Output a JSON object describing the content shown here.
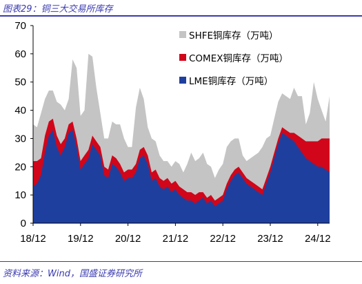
{
  "figure": {
    "title": "图表29：铜三大交易所库存",
    "source": "资料来源：Wind，国盛证券研究所"
  },
  "chart_data": {
    "type": "area",
    "stacked": true,
    "title": "",
    "xlabel": "",
    "ylabel": "",
    "ylim": [
      0,
      70
    ],
    "yticks": [
      0,
      10,
      20,
      30,
      40,
      50,
      60,
      70
    ],
    "xlim": [
      "2018-12",
      "2025-03"
    ],
    "xtick_labels": [
      "18/12",
      "19/12",
      "20/12",
      "21/12",
      "22/12",
      "23/12",
      "24/12"
    ],
    "grid": false,
    "legend_position": "top-right",
    "x": [
      "2018-12",
      "2019-01",
      "2019-02",
      "2019-03",
      "2019-04",
      "2019-05",
      "2019-06",
      "2019-07",
      "2019-08",
      "2019-09",
      "2019-10",
      "2019-11",
      "2019-12",
      "2020-01",
      "2020-02",
      "2020-03",
      "2020-04",
      "2020-05",
      "2020-06",
      "2020-07",
      "2020-08",
      "2020-09",
      "2020-10",
      "2020-11",
      "2020-12",
      "2021-01",
      "2021-02",
      "2021-03",
      "2021-04",
      "2021-05",
      "2021-06",
      "2021-07",
      "2021-08",
      "2021-09",
      "2021-10",
      "2021-11",
      "2021-12",
      "2022-01",
      "2022-02",
      "2022-03",
      "2022-04",
      "2022-05",
      "2022-06",
      "2022-07",
      "2022-08",
      "2022-09",
      "2022-10",
      "2022-11",
      "2022-12",
      "2023-01",
      "2023-02",
      "2023-03",
      "2023-04",
      "2023-05",
      "2023-06",
      "2023-07",
      "2023-08",
      "2023-09",
      "2023-10",
      "2023-11",
      "2023-12",
      "2024-01",
      "2024-02",
      "2024-03",
      "2024-04",
      "2024-05",
      "2024-06",
      "2024-07",
      "2024-08",
      "2024-09",
      "2024-10",
      "2024-11",
      "2024-12",
      "2025-01",
      "2025-02",
      "2025-03"
    ],
    "series": [
      {
        "name": "LME铜库存（万吨）",
        "color": "#1f3f9e",
        "values": [
          13,
          14,
          17,
          25,
          31,
          33,
          27,
          24,
          27,
          32,
          33,
          27,
          19,
          21,
          23,
          28,
          26,
          24,
          17,
          16,
          21,
          20,
          18,
          15,
          16,
          16,
          18,
          23,
          24,
          21,
          15,
          16,
          13,
          12,
          13,
          11,
          12,
          10,
          9,
          8,
          8,
          7,
          8,
          9,
          7,
          8,
          6,
          7,
          8,
          12,
          15,
          17,
          18,
          16,
          14,
          13,
          12,
          11,
          10,
          14,
          18,
          23,
          28,
          32,
          31,
          30,
          29,
          27,
          25,
          23,
          22,
          21,
          20,
          20,
          19,
          18
        ]
      },
      {
        "name": "COMEX铜库存（万吨）",
        "color": "#d1061a",
        "values": [
          9,
          8,
          6,
          6,
          5,
          4,
          4,
          4,
          3,
          3,
          3,
          3,
          3,
          3,
          3,
          3,
          3,
          3,
          3,
          3,
          3,
          3,
          3,
          3,
          3,
          3,
          3,
          3,
          3,
          3,
          3,
          3,
          3,
          3,
          3,
          3,
          3,
          3,
          3,
          3,
          3,
          3,
          3,
          2,
          2,
          2,
          2,
          2,
          2,
          2,
          2,
          2,
          2,
          2,
          2,
          2,
          2,
          2,
          2,
          2,
          2,
          2,
          2,
          2,
          2,
          2,
          3,
          4,
          5,
          6,
          7,
          8,
          9,
          10,
          11,
          12
        ]
      },
      {
        "name": "SHFE铜库存（万吨）",
        "color": "#c4c4c4",
        "values": [
          13,
          12,
          16,
          13,
          11,
          10,
          12,
          14,
          10,
          9,
          22,
          25,
          16,
          16,
          34,
          28,
          19,
          12,
          10,
          11,
          12,
          12,
          14,
          12,
          8,
          8,
          20,
          22,
          17,
          10,
          12,
          10,
          8,
          7,
          6,
          6,
          7,
          8,
          6,
          10,
          14,
          12,
          12,
          14,
          12,
          10,
          8,
          10,
          11,
          13,
          12,
          11,
          10,
          6,
          6,
          8,
          10,
          12,
          15,
          14,
          11,
          12,
          13,
          12,
          12,
          12,
          16,
          14,
          15,
          6,
          10,
          21,
          15,
          10,
          6,
          15
        ]
      }
    ]
  }
}
